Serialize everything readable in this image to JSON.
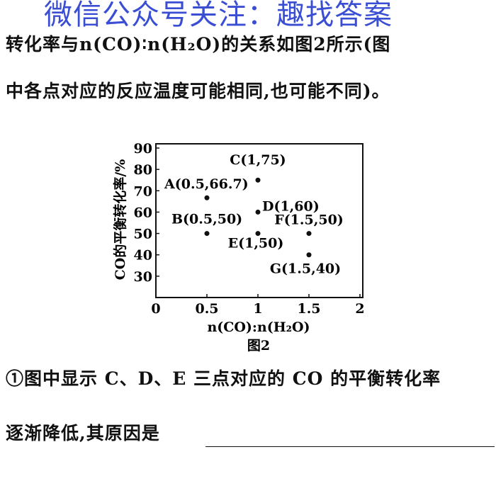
{
  "watermark": "微信公众号关注：趣找答案",
  "text": {
    "line1": "转化率与n(CO)∶n(H₂O)的关系如图2所示(图",
    "line2": "中各点对应的反应温度可能相同,也可能不同)。",
    "line3": "①图中显示 C、D、E 三点对应的 CO 的平衡转化率",
    "line4": "逐渐降低,其原因是"
  },
  "chart_data": {
    "type": "scatter",
    "caption": "图2",
    "xlabel": "n(CO):n(H₂O)",
    "ylabel": "CO的平衡转化率/%",
    "xlim": [
      0,
      2
    ],
    "ylim": [
      20,
      90
    ],
    "xticks": [
      "0",
      "0.5",
      "1",
      "1.5",
      "2"
    ],
    "yticks": [
      "30",
      "40",
      "50",
      "60",
      "70",
      "80",
      "90"
    ],
    "grid": false,
    "points": [
      {
        "label": "A(0.5,66.7)",
        "x": 0.5,
        "y": 66.7
      },
      {
        "label": "B(0.5,50)",
        "x": 0.5,
        "y": 50
      },
      {
        "label": "C(1,75)",
        "x": 1,
        "y": 75
      },
      {
        "label": "D(1,60)",
        "x": 1,
        "y": 60
      },
      {
        "label": "E(1,50)",
        "x": 1,
        "y": 50
      },
      {
        "label": "F(1.5,50)",
        "x": 1.5,
        "y": 50
      },
      {
        "label": "G(1.5,40)",
        "x": 1.5,
        "y": 40
      }
    ]
  }
}
